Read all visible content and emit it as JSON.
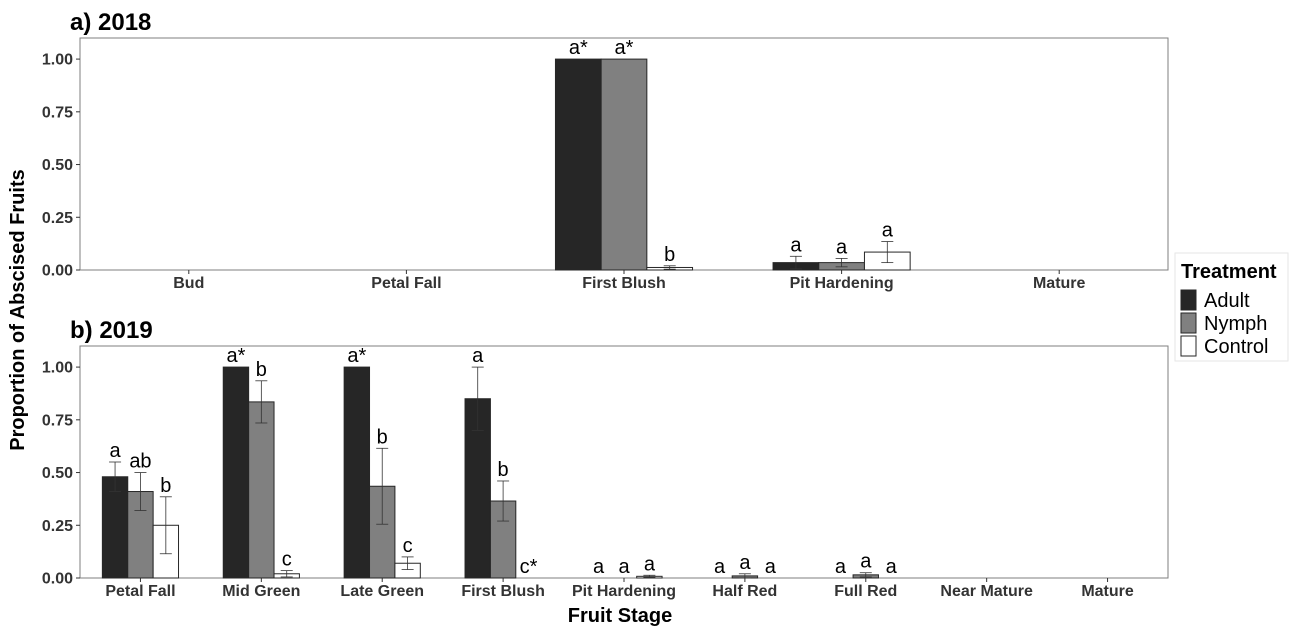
{
  "chart_data": [
    {
      "type": "bar",
      "title": "a) 2018",
      "categories": [
        "Bud",
        "Petal Fall",
        "First Blush",
        "Pit Hardening",
        "Mature"
      ],
      "ylim": [
        0,
        1.1
      ],
      "yticks": [
        "0.00",
        "0.25",
        "0.50",
        "0.75",
        "1.00"
      ],
      "grid": false,
      "series": [
        {
          "name": "Adult",
          "color": "#262626",
          "values": [
            null,
            null,
            1.0,
            0.035,
            null
          ],
          "err": [
            null,
            null,
            0,
            0.03,
            null
          ],
          "labels": [
            "",
            "",
            "a*",
            "a",
            ""
          ]
        },
        {
          "name": "Nymph",
          "color": "#808080",
          "values": [
            null,
            null,
            1.0,
            0.035,
            null
          ],
          "err": [
            null,
            null,
            0,
            0.02,
            null
          ],
          "labels": [
            "",
            "",
            "a*",
            "a",
            ""
          ]
        },
        {
          "name": "Control",
          "color": "#ffffff",
          "values": [
            null,
            null,
            0.012,
            0.085,
            null
          ],
          "err": [
            null,
            null,
            0.008,
            0.05,
            null
          ],
          "labels": [
            "",
            "",
            "b",
            "a",
            ""
          ]
        }
      ]
    },
    {
      "type": "bar",
      "title": "b) 2019",
      "categories": [
        "Petal Fall",
        "Mid Green",
        "Late Green",
        "First Blush",
        "Pit Hardening",
        "Half Red",
        "Full Red",
        "Near Mature",
        "Mature"
      ],
      "ylim": [
        0,
        1.1
      ],
      "yticks": [
        "0.00",
        "0.25",
        "0.50",
        "0.75",
        "1.00"
      ],
      "grid": false,
      "series": [
        {
          "name": "Adult",
          "color": "#262626",
          "values": [
            0.48,
            1.0,
            1.0,
            0.85,
            0,
            0,
            0,
            null,
            null
          ],
          "err": [
            0.07,
            0,
            0,
            0.15,
            0,
            0,
            0,
            null,
            null
          ],
          "labels": [
            "a",
            "a*",
            "a*",
            "a",
            "a",
            "a",
            "a",
            "",
            ""
          ]
        },
        {
          "name": "Nymph",
          "color": "#808080",
          "values": [
            0.41,
            0.835,
            0.435,
            0.365,
            0,
            0.01,
            0.015,
            null,
            null
          ],
          "err": [
            0.09,
            0.1,
            0.18,
            0.095,
            0,
            0.01,
            0.01,
            null,
            null
          ],
          "labels": [
            "ab",
            "b",
            "b",
            "b",
            "a",
            "a",
            "a",
            "",
            ""
          ]
        },
        {
          "name": "Control",
          "color": "#ffffff",
          "values": [
            0.25,
            0.02,
            0.07,
            0,
            0.008,
            0,
            0,
            null,
            null
          ],
          "err": [
            0.135,
            0.015,
            0.03,
            0,
            0.005,
            0,
            0,
            null,
            null
          ],
          "labels": [
            "b",
            "c",
            "c",
            "c*",
            "a",
            "a",
            "a",
            "",
            ""
          ]
        }
      ]
    }
  ],
  "xlabel": "Fruit Stage",
  "ylabel": "Proportion of Abscised Fruits",
  "legend": {
    "title": "Treatment",
    "position": "right",
    "items": [
      {
        "label": "Adult",
        "color": "#262626"
      },
      {
        "label": "Nymph",
        "color": "#808080"
      },
      {
        "label": "Control",
        "color": "#ffffff"
      }
    ]
  }
}
